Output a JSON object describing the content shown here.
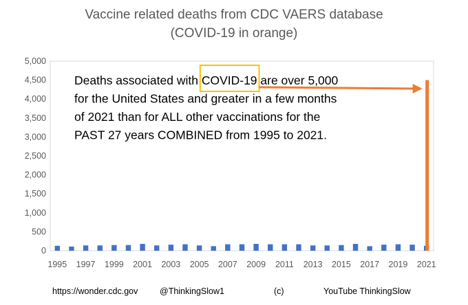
{
  "chart_data": {
    "type": "bar",
    "title": [
      "Vaccine related deaths from CDC VAERS database",
      "(COVID-19 in orange)"
    ],
    "xlabel": "",
    "ylabel": "",
    "ylim": [
      0,
      5000
    ],
    "yticks": [
      "0",
      "500",
      "1,000",
      "1,500",
      "2,000",
      "2,500",
      "3,000",
      "3,500",
      "4,000",
      "4,500",
      "5,000"
    ],
    "ytick_values": [
      0,
      500,
      1000,
      1500,
      2000,
      2500,
      3000,
      3500,
      4000,
      4500,
      5000
    ],
    "grid": false,
    "categories": [
      1995,
      1996,
      1997,
      1998,
      1999,
      2000,
      2001,
      2002,
      2003,
      2004,
      2005,
      2006,
      2007,
      2008,
      2009,
      2010,
      2011,
      2012,
      2013,
      2014,
      2015,
      2016,
      2017,
      2018,
      2019,
      2020,
      2021
    ],
    "xtick_labels": [
      "1995",
      "1997",
      "1999",
      "2001",
      "2003",
      "2005",
      "2007",
      "2009",
      "2011",
      "2013",
      "2015",
      "2017",
      "2019",
      "2021"
    ],
    "series": [
      {
        "color": "#4472c4",
        "values": [
          130,
          110,
          140,
          140,
          150,
          150,
          180,
          140,
          160,
          170,
          140,
          120,
          170,
          170,
          180,
          170,
          170,
          170,
          140,
          140,
          150,
          180,
          120,
          160,
          170,
          160,
          130
        ]
      },
      {
        "color": "#ed7d31",
        "values": [
          0,
          0,
          0,
          0,
          0,
          0,
          0,
          0,
          0,
          0,
          0,
          0,
          0,
          0,
          0,
          0,
          0,
          0,
          0,
          0,
          0,
          0,
          0,
          0,
          0,
          0,
          4500
        ]
      }
    ],
    "annotation": {
      "lines": [
        "Deaths associated with COVID-19 are over 5,000",
        "for the United States and greater in a few months",
        "of 2021 than for ALL other vaccinations for the",
        "PAST 27 years COMBINED from 1995 to 2021."
      ],
      "highlight_text": "COVID-19",
      "highlight_color": "#ffc000",
      "arrow_color": "#ed7d31"
    }
  },
  "footer": {
    "source": "https://wonder.cdc.gov",
    "handle": "@ThinkingSlow1",
    "copyright": "(c)",
    "channel": "YouTube ThinkingSlow"
  }
}
